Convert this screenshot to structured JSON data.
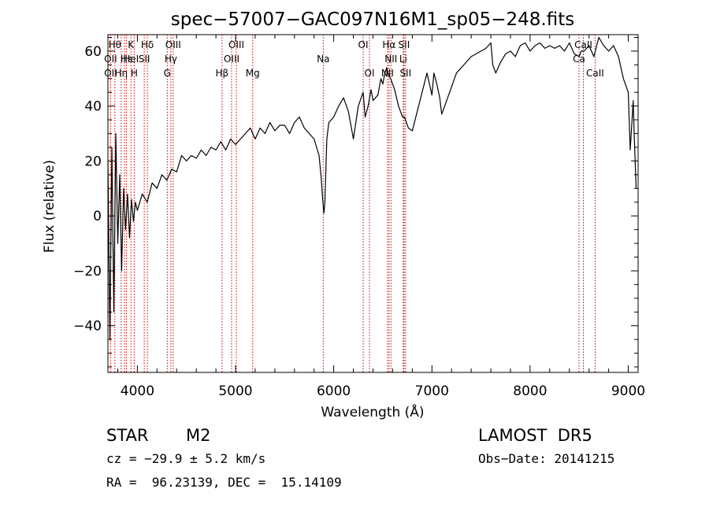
{
  "chart_data": {
    "type": "line",
    "title": "spec−57007−GAC097N16M1_sp05−248.fits",
    "xlabel": "Wavelength (Å)",
    "ylabel": "Flux (relative)",
    "xlim": [
      3700,
      9100
    ],
    "ylim": [
      -57,
      66
    ],
    "x_ticks": [
      4000,
      5000,
      6000,
      7000,
      8000,
      9000
    ],
    "y_ticks": [
      -40,
      -20,
      0,
      20,
      40,
      60
    ],
    "y_tick_labels": [
      "−40",
      "−20",
      "0",
      "20",
      "40",
      "60"
    ],
    "line_color": "#000000",
    "marker_color": "#cc0000",
    "series": [
      {
        "x": [
          3700,
          3720,
          3740,
          3760,
          3780,
          3800,
          3820,
          3840,
          3860,
          3880,
          3900,
          3920,
          3940,
          3960,
          3980,
          4000,
          4050,
          4100,
          4150,
          4200,
          4250,
          4300,
          4350,
          4400,
          4450,
          4500,
          4550,
          4600,
          4650,
          4700,
          4750,
          4800,
          4850,
          4900,
          4950,
          5000,
          5050,
          5100,
          5150,
          5200,
          5250,
          5300,
          5350,
          5400,
          5450,
          5500,
          5550,
          5600,
          5650,
          5700,
          5750,
          5800,
          5850,
          5870,
          5890,
          5900,
          5910,
          5930,
          5950,
          6000,
          6050,
          6100,
          6150,
          6200,
          6250,
          6300,
          6320,
          6350,
          6380,
          6400,
          6450,
          6480,
          6500,
          6520,
          6540,
          6560,
          6580,
          6600,
          6620,
          6640,
          6660,
          6680,
          6700,
          6720,
          6740,
          6760,
          6800,
          6850,
          6900,
          6950,
          7000,
          7020,
          7050,
          7080,
          7100,
          7150,
          7200,
          7250,
          7300,
          7350,
          7400,
          7450,
          7500,
          7550,
          7600,
          7620,
          7650,
          7700,
          7750,
          7800,
          7850,
          7900,
          7950,
          8000,
          8050,
          8100,
          8150,
          8200,
          8250,
          8300,
          8350,
          8400,
          8450,
          8500,
          8520,
          8550,
          8600,
          8650,
          8700,
          8750,
          8800,
          8850,
          8900,
          8950,
          9000,
          9020,
          9050,
          9060,
          9080
        ],
        "y": [
          20,
          -45,
          25,
          -35,
          30,
          -10,
          15,
          -20,
          10,
          -5,
          8,
          -8,
          6,
          -2,
          5,
          2,
          8,
          5,
          12,
          10,
          15,
          13,
          17,
          16,
          22,
          20,
          22,
          21,
          24,
          22,
          25,
          24,
          27,
          24,
          28,
          26,
          28,
          30,
          32,
          28,
          32,
          30,
          34,
          31,
          33,
          33,
          30,
          34,
          36,
          32,
          30,
          28,
          22,
          15,
          5,
          1,
          5,
          28,
          34,
          36,
          40,
          43,
          38,
          28,
          40,
          45,
          36,
          40,
          46,
          42,
          44,
          50,
          48,
          52,
          54,
          51,
          50,
          48,
          46,
          43,
          40,
          38,
          36,
          36,
          34,
          32,
          31,
          38,
          45,
          52,
          44,
          52,
          48,
          43,
          37,
          42,
          47,
          52,
          54,
          56,
          58,
          59,
          60,
          61,
          63,
          55,
          52,
          56,
          59,
          60,
          58,
          62,
          63,
          60,
          62,
          63,
          61,
          62,
          61,
          62,
          60,
          63,
          59,
          58,
          60,
          60,
          62,
          58,
          65,
          62,
          60,
          62,
          58,
          50,
          45,
          24,
          42,
          30,
          10
        ]
      }
    ],
    "lines": [
      {
        "wave": 3727,
        "labels": [
          "OII"
        ]
      },
      {
        "wave": 3771,
        "labels": [
          "Hθ",
          "OII"
        ]
      },
      {
        "wave": 3835,
        "labels": [
          "Hη"
        ]
      },
      {
        "wave": 3869,
        "labels": []
      },
      {
        "wave": 3889,
        "labels": [
          "HeI"
        ]
      },
      {
        "wave": 3934,
        "labels": [
          "K"
        ]
      },
      {
        "wave": 3968,
        "labels": [
          "H"
        ]
      },
      {
        "wave": 4070,
        "labels": [
          "SII"
        ]
      },
      {
        "wave": 4102,
        "labels": [
          "Hδ"
        ]
      },
      {
        "wave": 4304,
        "labels": [
          "G"
        ]
      },
      {
        "wave": 4341,
        "labels": [
          "Hγ"
        ]
      },
      {
        "wave": 4364,
        "labels": [
          "OIII"
        ]
      },
      {
        "wave": 4862,
        "labels": [
          "Hβ"
        ]
      },
      {
        "wave": 4960,
        "labels": [
          "OIII"
        ]
      },
      {
        "wave": 5008,
        "labels": [
          "OIII"
        ]
      },
      {
        "wave": 5175,
        "labels": [
          "Mg"
        ]
      },
      {
        "wave": 5893,
        "labels": [
          "Na"
        ]
      },
      {
        "wave": 6300,
        "labels": [
          "OI"
        ]
      },
      {
        "wave": 6364,
        "labels": [
          "OI"
        ]
      },
      {
        "wave": 6548,
        "labels": [
          "NII"
        ]
      },
      {
        "wave": 6563,
        "labels": [
          "Hα"
        ]
      },
      {
        "wave": 6583,
        "labels": [
          "NII"
        ]
      },
      {
        "wave": 6708,
        "labels": [
          "Li"
        ]
      },
      {
        "wave": 6716,
        "labels": [
          "SII"
        ]
      },
      {
        "wave": 6731,
        "labels": [
          "SII"
        ]
      },
      {
        "wave": 8498,
        "labels": [
          "CaII"
        ]
      },
      {
        "wave": 8542,
        "labels": [
          "CaII"
        ]
      },
      {
        "wave": 8662,
        "labels": [
          "CaII"
        ]
      }
    ],
    "line_label_rows": [
      [
        [
          "Hθ",
          3771
        ],
        [
          "K",
          3934
        ],
        [
          "Hδ",
          4102
        ],
        [
          "OIII",
          4364
        ],
        [
          "OIII",
          5008
        ],
        [
          "OI",
          6300
        ],
        [
          "Hα",
          6563
        ],
        [
          "SII",
          6716
        ],
        [
          "CaII",
          8542
        ]
      ],
      [
        [
          "OII",
          3727
        ],
        [
          "Hε",
          3889
        ],
        [
          "HeI",
          3934
        ],
        [
          "SII",
          4070
        ],
        [
          "Hγ",
          4341
        ],
        [
          "OIII",
          4960
        ],
        [
          "Na",
          5893
        ],
        [
          "NII",
          6583
        ],
        [
          "Li",
          6708
        ],
        [
          "Ca",
          8498
        ]
      ],
      [
        [
          "OII",
          3727
        ],
        [
          "Hη",
          3835
        ],
        [
          "H",
          3968
        ],
        [
          "G",
          4304
        ],
        [
          "Hβ",
          4862
        ],
        [
          "Mg",
          5175
        ],
        [
          "OI",
          6364
        ],
        [
          "NII",
          6548
        ],
        [
          "SII",
          6731
        ],
        [
          "CaII",
          8662
        ]
      ]
    ]
  },
  "info": {
    "class": "STAR",
    "subclass": "M2",
    "cz": "cz = −29.9 ± 5.2 km/s",
    "radec": "RA =  96.23139, DEC =  15.14109",
    "survey": "LAMOST  DR5",
    "obsdate": "Obs−Date: 20141215"
  }
}
